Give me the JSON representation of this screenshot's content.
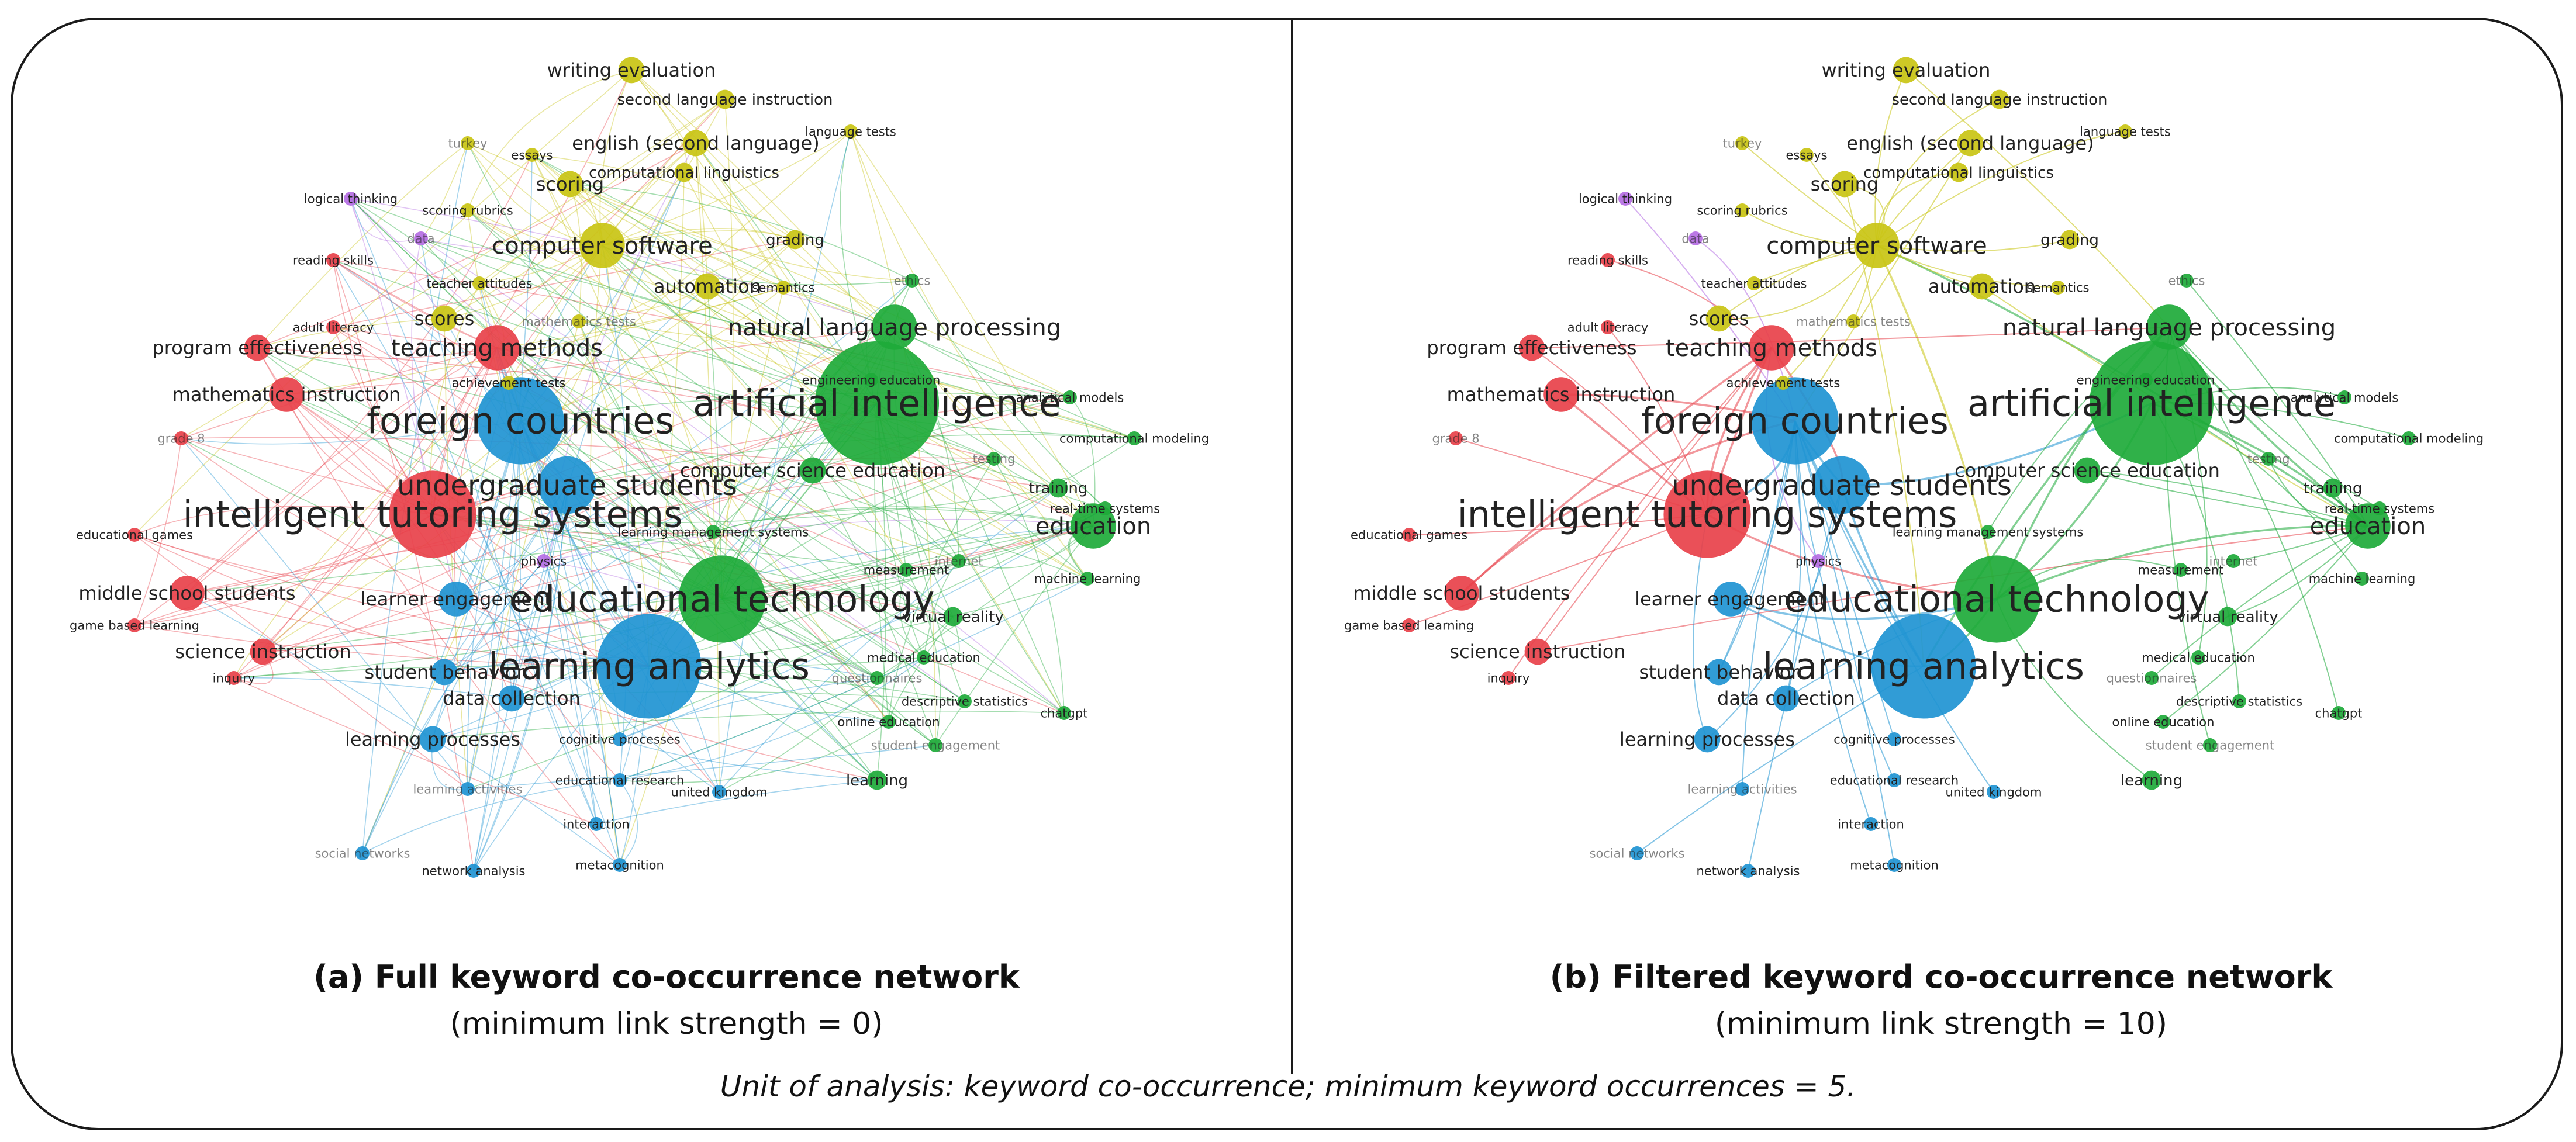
{
  "colors": {
    "red": "#e8414a",
    "blue": "#1f94d2",
    "green": "#1eaa3a",
    "yellow": "#c9c413",
    "purple": "#b56ee3"
  },
  "panels": [
    {
      "caption_title": "(a) Full keyword co-occurrence network",
      "caption_subtitle": "(minimum link strength = 0)"
    },
    {
      "caption_title": "(b) Filtered keyword co-occurrence network",
      "caption_subtitle": "(minimum link strength = 10)"
    }
  ],
  "footnote": "Unit of analysis: keyword co-occurrence; minimum keyword occurrences = 5.",
  "nodes": [
    {
      "label": "artificial intelligence",
      "cluster": "green",
      "weight": 10
    },
    {
      "label": "foreign countries",
      "cluster": "blue",
      "weight": 8
    },
    {
      "label": "intelligent tutoring systems",
      "cluster": "red",
      "weight": 8
    },
    {
      "label": "learning analytics",
      "cluster": "blue",
      "weight": 9
    },
    {
      "label": "educational technology",
      "cluster": "green",
      "weight": 8
    },
    {
      "label": "undergraduate students",
      "cluster": "blue",
      "weight": 6
    },
    {
      "label": "natural language processing",
      "cluster": "green",
      "weight": 5
    },
    {
      "label": "computer software",
      "cluster": "yellow",
      "weight": 5
    },
    {
      "label": "teaching methods",
      "cluster": "red",
      "weight": 5
    },
    {
      "label": "education",
      "cluster": "green",
      "weight": 5
    },
    {
      "label": "learner engagement",
      "cluster": "blue",
      "weight": 4
    },
    {
      "label": "mathematics instruction",
      "cluster": "red",
      "weight": 4
    },
    {
      "label": "program effectiveness",
      "cluster": "red",
      "weight": 3
    },
    {
      "label": "middle school students",
      "cluster": "red",
      "weight": 4
    },
    {
      "label": "science instruction",
      "cluster": "red",
      "weight": 3
    },
    {
      "label": "learning processes",
      "cluster": "blue",
      "weight": 3
    },
    {
      "label": "data collection",
      "cluster": "blue",
      "weight": 3
    },
    {
      "label": "student behavior",
      "cluster": "blue",
      "weight": 3
    },
    {
      "label": "computer science education",
      "cluster": "green",
      "weight": 3
    },
    {
      "label": "writing evaluation",
      "cluster": "yellow",
      "weight": 3
    },
    {
      "label": "second language instruction",
      "cluster": "yellow",
      "weight": 2
    },
    {
      "label": "english (second language)",
      "cluster": "yellow",
      "weight": 3
    },
    {
      "label": "computational linguistics",
      "cluster": "yellow",
      "weight": 2
    },
    {
      "label": "scoring",
      "cluster": "yellow",
      "weight": 3
    },
    {
      "label": "automation",
      "cluster": "yellow",
      "weight": 3
    },
    {
      "label": "scores",
      "cluster": "yellow",
      "weight": 3
    },
    {
      "label": "grading",
      "cluster": "yellow",
      "weight": 2
    },
    {
      "label": "language tests",
      "cluster": "yellow",
      "weight": 1
    },
    {
      "label": "turkey",
      "cluster": "yellow",
      "weight": 1
    },
    {
      "label": "essays",
      "cluster": "yellow",
      "weight": 1
    },
    {
      "label": "scoring rubrics",
      "cluster": "yellow",
      "weight": 1
    },
    {
      "label": "teacher attitudes",
      "cluster": "yellow",
      "weight": 1
    },
    {
      "label": "mathematics tests",
      "cluster": "yellow",
      "weight": 1
    },
    {
      "label": "semantics",
      "cluster": "yellow",
      "weight": 1
    },
    {
      "label": "achievement tests",
      "cluster": "yellow",
      "weight": 1
    },
    {
      "label": "logical thinking",
      "cluster": "purple",
      "weight": 1
    },
    {
      "label": "data",
      "cluster": "purple",
      "weight": 1
    },
    {
      "label": "physics",
      "cluster": "purple",
      "weight": 1
    },
    {
      "label": "reading skills",
      "cluster": "red",
      "weight": 1
    },
    {
      "label": "adult literacy",
      "cluster": "red",
      "weight": 1
    },
    {
      "label": "grade 8",
      "cluster": "red",
      "weight": 1
    },
    {
      "label": "educational games",
      "cluster": "red",
      "weight": 1
    },
    {
      "label": "game based learning",
      "cluster": "red",
      "weight": 1
    },
    {
      "label": "inquiry",
      "cluster": "red",
      "weight": 1
    },
    {
      "label": "ethics",
      "cluster": "green",
      "weight": 1
    },
    {
      "label": "engineering education",
      "cluster": "green",
      "weight": 1
    },
    {
      "label": "analytical models",
      "cluster": "green",
      "weight": 1
    },
    {
      "label": "computational modeling",
      "cluster": "green",
      "weight": 1
    },
    {
      "label": "testing",
      "cluster": "green",
      "weight": 1
    },
    {
      "label": "training",
      "cluster": "green",
      "weight": 2
    },
    {
      "label": "real-time systems",
      "cluster": "green",
      "weight": 1
    },
    {
      "label": "machine learning",
      "cluster": "green",
      "weight": 1
    },
    {
      "label": "internet",
      "cluster": "green",
      "weight": 1
    },
    {
      "label": "learning management systems",
      "cluster": "green",
      "weight": 1
    },
    {
      "label": "virtual reality",
      "cluster": "green",
      "weight": 2
    },
    {
      "label": "medical education",
      "cluster": "green",
      "weight": 1
    },
    {
      "label": "questionnaires",
      "cluster": "green",
      "weight": 1
    },
    {
      "label": "descriptive statistics",
      "cluster": "green",
      "weight": 1
    },
    {
      "label": "chatgpt",
      "cluster": "green",
      "weight": 1
    },
    {
      "label": "online education",
      "cluster": "green",
      "weight": 1
    },
    {
      "label": "student engagement",
      "cluster": "green",
      "weight": 1
    },
    {
      "label": "learning",
      "cluster": "green",
      "weight": 2
    },
    {
      "label": "measurement",
      "cluster": "green",
      "weight": 1
    },
    {
      "label": "cognitive processes",
      "cluster": "blue",
      "weight": 1
    },
    {
      "label": "learning activities",
      "cluster": "blue",
      "weight": 1
    },
    {
      "label": "educational research",
      "cluster": "blue",
      "weight": 1
    },
    {
      "label": "united kingdom",
      "cluster": "blue",
      "weight": 1
    },
    {
      "label": "interaction",
      "cluster": "blue",
      "weight": 1
    },
    {
      "label": "social networks",
      "cluster": "blue",
      "weight": 1
    },
    {
      "label": "network analysis",
      "cluster": "blue",
      "weight": 1
    },
    {
      "label": "metacognition",
      "cluster": "blue",
      "weight": 1
    }
  ]
}
